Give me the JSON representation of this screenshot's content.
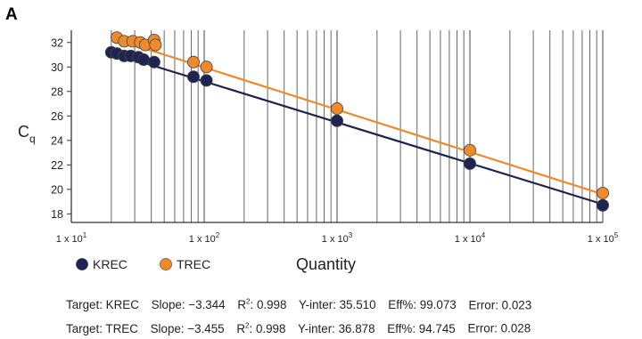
{
  "panel_label": "A",
  "chart_data": {
    "type": "scatter",
    "x_scale": "log",
    "xlim": [
      10,
      100000
    ],
    "ylim": [
      17.3,
      33
    ],
    "xlabel": "Quantity",
    "ylabel": "Cq",
    "x_tick_labels": [
      {
        "value": 10,
        "mantissa": "1 x 10",
        "exp": "1"
      },
      {
        "value": 100,
        "mantissa": "1 x 10",
        "exp": "2"
      },
      {
        "value": 1000,
        "mantissa": "1 x 10",
        "exp": "3"
      },
      {
        "value": 10000,
        "mantissa": "1 x 10",
        "exp": "4"
      },
      {
        "value": 100000,
        "mantissa": "1 x 10",
        "exp": "5"
      }
    ],
    "y_ticks": [
      18,
      20,
      22,
      24,
      26,
      28,
      30,
      32
    ],
    "grid": "vertical",
    "legend_position": "bottom-left",
    "series": [
      {
        "name": "KREC",
        "color": "#1e2452",
        "points": [
          {
            "x": 20,
            "y": 31.2
          },
          {
            "x": 22,
            "y": 31.1
          },
          {
            "x": 25,
            "y": 30.9
          },
          {
            "x": 28,
            "y": 30.9
          },
          {
            "x": 32,
            "y": 30.8
          },
          {
            "x": 35,
            "y": 30.6
          },
          {
            "x": 42,
            "y": 30.4
          },
          {
            "x": 83,
            "y": 29.2
          },
          {
            "x": 104,
            "y": 28.9
          },
          {
            "x": 1000,
            "y": 25.6
          },
          {
            "x": 10000,
            "y": 22.1
          },
          {
            "x": 100000,
            "y": 18.7
          }
        ],
        "fit": {
          "slope": -3.344,
          "intercept": 35.51
        }
      },
      {
        "name": "TREC",
        "color": "#ef8a2b",
        "points": [
          {
            "x": 22,
            "y": 32.4
          },
          {
            "x": 25,
            "y": 32.1
          },
          {
            "x": 29,
            "y": 32.1
          },
          {
            "x": 33,
            "y": 32.0
          },
          {
            "x": 36,
            "y": 31.8
          },
          {
            "x": 42,
            "y": 32.2
          },
          {
            "x": 43,
            "y": 31.8
          },
          {
            "x": 83,
            "y": 30.4
          },
          {
            "x": 104,
            "y": 30.0
          },
          {
            "x": 1000,
            "y": 26.6
          },
          {
            "x": 10000,
            "y": 23.2
          },
          {
            "x": 100000,
            "y": 19.7
          }
        ],
        "fit": {
          "slope": -3.455,
          "intercept": 36.878
        }
      }
    ]
  },
  "stats": [
    {
      "target": "Target: KREC",
      "slope": "Slope: −3.344",
      "r2_label": "R",
      "r2_sup": "2",
      "r2_value": ": 0.998",
      "yinter": "Y-inter: 35.510",
      "eff": "Eff%: 99.073",
      "error": "Error: 0.023"
    },
    {
      "target": "Target: TREC",
      "slope": "Slope: −3.455",
      "r2_label": "R",
      "r2_sup": "2",
      "r2_value": ": 0.998",
      "yinter": "Y-inter: 36.878",
      "eff": "Eff%: 94.745",
      "error": "Error: 0.028"
    }
  ]
}
